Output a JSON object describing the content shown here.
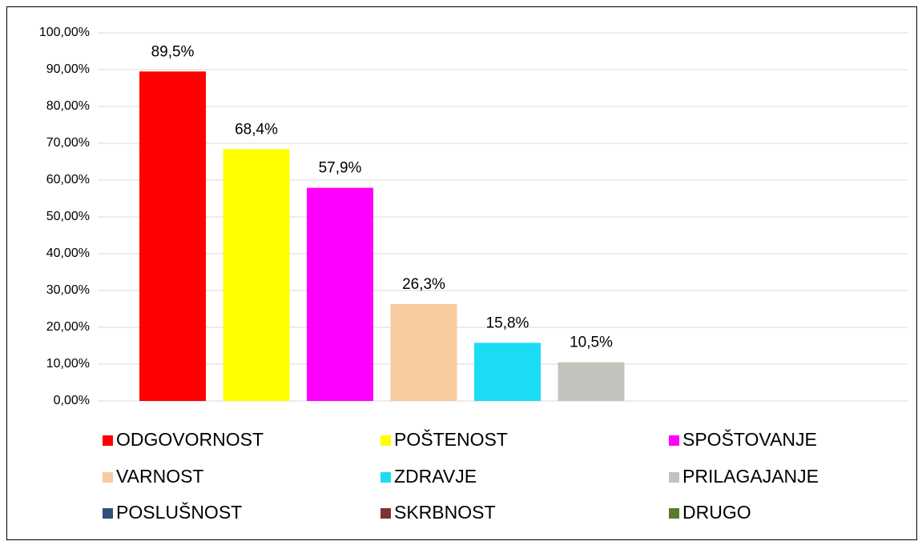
{
  "chart_data": {
    "type": "bar",
    "ylim": [
      0,
      100
    ],
    "yticks": [
      {
        "value": 0,
        "label": "0,00%"
      },
      {
        "value": 10,
        "label": "10,00%"
      },
      {
        "value": 20,
        "label": "20,00%"
      },
      {
        "value": 30,
        "label": "30,00%"
      },
      {
        "value": 40,
        "label": "40,00%"
      },
      {
        "value": 50,
        "label": "50,00%"
      },
      {
        "value": 60,
        "label": "60,00%"
      },
      {
        "value": 70,
        "label": "70,00%"
      },
      {
        "value": 80,
        "label": "80,00%"
      },
      {
        "value": 90,
        "label": "90,00%"
      },
      {
        "value": 100,
        "label": "100,00%"
      }
    ],
    "grid": true,
    "legend": "bottom",
    "series": [
      {
        "name": "ODGOVORNOST",
        "color": "#ff0000",
        "values": [
          89.5
        ],
        "value_labels": [
          "89,5%"
        ]
      },
      {
        "name": "POŠTENOST",
        "color": "#ffff00",
        "values": [
          68.4
        ],
        "value_labels": [
          "68,4%"
        ]
      },
      {
        "name": "SPOŠTOVANJE",
        "color": "#ff00ff",
        "values": [
          57.9
        ],
        "value_labels": [
          "57,9%"
        ]
      },
      {
        "name": "VARNOST",
        "color": "#f8cba0",
        "values": [
          26.3
        ],
        "value_labels": [
          "26,3%"
        ]
      },
      {
        "name": "ZDRAVJE",
        "color": "#1cdcf4",
        "values": [
          15.8
        ],
        "value_labels": [
          "15,8%"
        ]
      },
      {
        "name": "PRILAGAJANJE",
        "color": "#c0c4bc",
        "values": [
          10.5
        ],
        "value_labels": [
          "10,5%"
        ]
      },
      {
        "name": "POSLUŠNOST",
        "color": "#2f4f7f",
        "values": [
          null
        ]
      },
      {
        "name": "SKRBNOST",
        "color": "#7f3030",
        "values": [
          null
        ]
      },
      {
        "name": "DRUGO",
        "color": "#5a7a30",
        "values": [
          null
        ]
      }
    ]
  }
}
